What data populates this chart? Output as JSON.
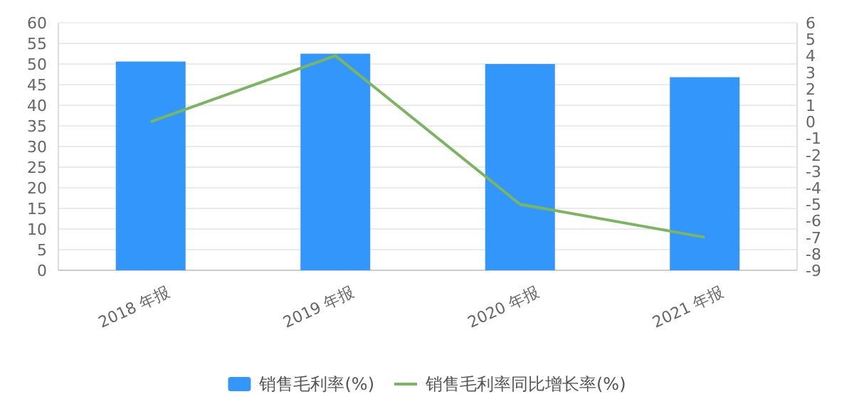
{
  "chart_data": {
    "type": "bar",
    "categories": [
      "2018 年报",
      "2019 年报",
      "2020 年报",
      "2021 年报"
    ],
    "series": [
      {
        "name": "销售毛利率(%)",
        "color": "#3296fa",
        "values": [
          50.6,
          52.5,
          50.0,
          46.8
        ]
      },
      {
        "name": "销售毛利率同比增长率(%)",
        "type": "line",
        "axis": "y2",
        "color": "#7cb561",
        "values": [
          0,
          4.0,
          -5.0,
          -7.0
        ]
      }
    ],
    "ylim": [
      0,
      60
    ],
    "yticks": [
      0,
      5,
      10,
      15,
      20,
      25,
      30,
      35,
      40,
      45,
      50,
      55,
      60
    ],
    "y2lim": [
      -9,
      6
    ],
    "y2ticks": [
      -9,
      -8,
      -7,
      -6,
      -5,
      -4,
      -3,
      -2,
      -1,
      0,
      1,
      2,
      3,
      4,
      5,
      6
    ],
    "grid": "y",
    "legend": "bottom",
    "marker": "none",
    "line_style": "solid"
  }
}
